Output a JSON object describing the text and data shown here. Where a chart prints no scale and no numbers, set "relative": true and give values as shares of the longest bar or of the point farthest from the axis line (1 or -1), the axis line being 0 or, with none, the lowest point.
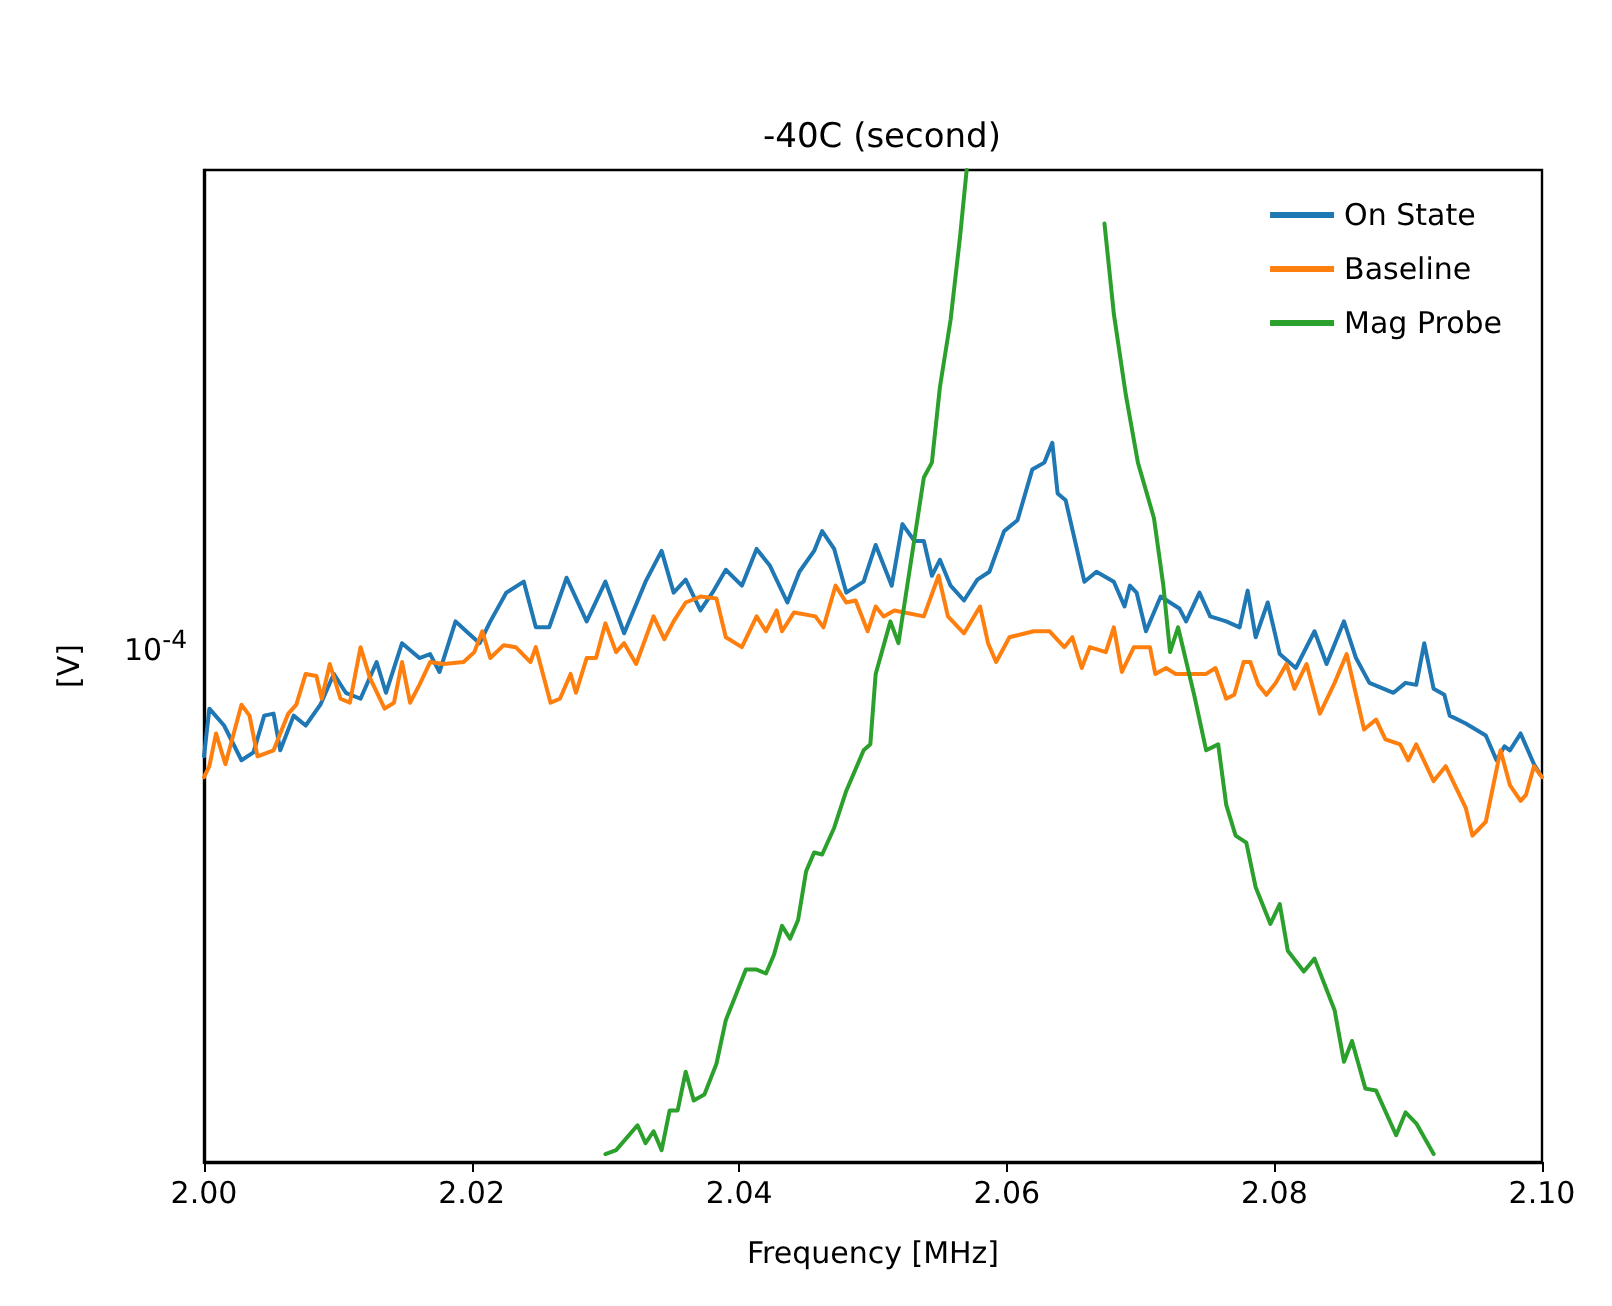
{
  "chart_data": {
    "type": "line",
    "title": "-40C (second)",
    "xlabel": "Frequency [MHz]",
    "ylabel": "[V]",
    "relative": true,
    "annotations": [
      "10$^{-4}$"
    ],
    "grid": false,
    "legend": "top right",
    "marker": "none",
    "line_style": "solid",
    "xlim": [
      2.0,
      2.1
    ],
    "xticks": [
      {
        "value": 2.0,
        "label": "2.00"
      },
      {
        "value": 2.02,
        "label": "2.02"
      },
      {
        "value": 2.04,
        "label": "2.04"
      },
      {
        "value": 2.06,
        "label": "2.06"
      },
      {
        "value": 2.08,
        "label": "2.08"
      },
      {
        "value": 2.1,
        "label": "2.10"
      }
    ],
    "series": [
      {
        "name": "On State",
        "color": "#1f77b4",
        "x": [
          2.0,
          2.0004,
          2.0015,
          2.0028,
          2.0037,
          2.0045,
          2.0052,
          2.0057,
          2.0067,
          2.0076,
          2.0087,
          2.0097,
          2.0106,
          2.0117,
          2.0129,
          2.0136,
          2.0148,
          2.0161,
          2.0169,
          2.0176,
          2.0188,
          2.0196,
          2.0206,
          2.0214,
          2.0226,
          2.0239,
          2.0248,
          2.0258,
          2.0271,
          2.0286,
          2.03,
          2.0314,
          2.033,
          2.0342,
          2.0351,
          2.036,
          2.0371,
          2.0381,
          2.039,
          2.0402,
          2.0413,
          2.0423,
          2.0436,
          2.0445,
          2.0456,
          2.0462,
          2.0471,
          2.048,
          2.0493,
          2.0502,
          2.0514,
          2.0522,
          2.0531,
          2.0538,
          2.0544,
          2.055,
          2.0558,
          2.0568,
          2.0578,
          2.0587,
          2.0598,
          2.0608,
          2.0619,
          2.0628,
          2.0634,
          2.0638,
          2.0644,
          2.0658,
          2.0667,
          2.068,
          2.0688,
          2.0692,
          2.0697,
          2.0704,
          2.0715,
          2.0729,
          2.0734,
          2.0744,
          2.0752,
          2.0764,
          2.0774,
          2.078,
          2.0786,
          2.0795,
          2.0804,
          2.0816,
          2.083,
          2.0839,
          2.0852,
          2.0861,
          2.0871,
          2.0889,
          2.0898,
          2.0906,
          2.0912,
          2.0919,
          2.0927,
          2.0931,
          2.0943,
          2.0958,
          2.0966,
          2.0972,
          2.0976,
          2.0984,
          2.0994,
          2.0999
        ],
        "values": [
          0.409,
          0.457,
          0.44,
          0.405,
          0.413,
          0.45,
          0.452,
          0.415,
          0.45,
          0.44,
          0.461,
          0.492,
          0.473,
          0.467,
          0.504,
          0.473,
          0.523,
          0.508,
          0.512,
          0.494,
          0.545,
          0.535,
          0.523,
          0.545,
          0.574,
          0.585,
          0.539,
          0.539,
          0.589,
          0.545,
          0.585,
          0.533,
          0.585,
          0.616,
          0.574,
          0.587,
          0.556,
          0.576,
          0.597,
          0.581,
          0.618,
          0.601,
          0.564,
          0.595,
          0.616,
          0.636,
          0.618,
          0.574,
          0.585,
          0.622,
          0.581,
          0.643,
          0.626,
          0.626,
          0.591,
          0.607,
          0.581,
          0.566,
          0.587,
          0.595,
          0.636,
          0.647,
          0.698,
          0.705,
          0.725,
          0.674,
          0.667,
          0.585,
          0.595,
          0.585,
          0.56,
          0.581,
          0.574,
          0.535,
          0.57,
          0.558,
          0.545,
          0.574,
          0.55,
          0.545,
          0.539,
          0.576,
          0.529,
          0.564,
          0.512,
          0.498,
          0.535,
          0.502,
          0.545,
          0.508,
          0.483,
          0.473,
          0.483,
          0.481,
          0.523,
          0.477,
          0.471,
          0.45,
          0.442,
          0.43,
          0.405,
          0.419,
          0.415,
          0.432,
          0.401,
          0.39
        ]
      },
      {
        "name": "Baseline",
        "color": "#ff7f0e",
        "x": [
          2.0,
          2.0004,
          2.0009,
          2.0016,
          2.0028,
          2.0034,
          2.004,
          2.0052,
          2.0063,
          2.0069,
          2.0076,
          2.0084,
          2.0088,
          2.0094,
          2.0102,
          2.0109,
          2.0117,
          2.0124,
          2.0135,
          2.0142,
          2.0148,
          2.0154,
          2.0161,
          2.0169,
          2.0179,
          2.0194,
          2.0202,
          2.0208,
          2.0214,
          2.0224,
          2.0233,
          2.0244,
          2.0248,
          2.0259,
          2.0266,
          2.0274,
          2.0278,
          2.0286,
          2.0293,
          2.03,
          2.0308,
          2.0314,
          2.0323,
          2.0336,
          2.0344,
          2.0351,
          2.036,
          2.0371,
          2.0383,
          2.039,
          2.0402,
          2.0413,
          2.042,
          2.0428,
          2.0432,
          2.0441,
          2.0457,
          2.0463,
          2.0472,
          2.048,
          2.0487,
          2.0496,
          2.0502,
          2.0508,
          2.0516,
          2.0538,
          2.0549,
          2.0556,
          2.0568,
          2.058,
          2.0586,
          2.0592,
          2.0602,
          2.062,
          2.0632,
          2.0643,
          2.0649,
          2.0656,
          2.0662,
          2.0674,
          2.068,
          2.0686,
          2.0695,
          2.0707,
          2.0711,
          2.0719,
          2.0726,
          2.0734,
          2.0749,
          2.0756,
          2.0764,
          2.077,
          2.0777,
          2.0782,
          2.0788,
          2.0794,
          2.0801,
          2.0809,
          2.0815,
          2.0824,
          2.0834,
          2.0845,
          2.0854,
          2.0867,
          2.0876,
          2.0883,
          2.0894,
          2.09,
          2.0906,
          2.0919,
          2.0928,
          2.0943,
          2.0948,
          2.0958,
          2.0969,
          2.0976,
          2.0984,
          2.0988,
          2.0994,
          2.1
        ],
        "values": [
          0.388,
          0.399,
          0.432,
          0.401,
          0.461,
          0.45,
          0.409,
          0.415,
          0.452,
          0.461,
          0.492,
          0.49,
          0.467,
          0.502,
          0.467,
          0.463,
          0.519,
          0.488,
          0.457,
          0.463,
          0.504,
          0.463,
          0.481,
          0.504,
          0.502,
          0.504,
          0.514,
          0.535,
          0.508,
          0.521,
          0.519,
          0.504,
          0.519,
          0.463,
          0.467,
          0.492,
          0.473,
          0.508,
          0.508,
          0.543,
          0.514,
          0.523,
          0.502,
          0.55,
          0.527,
          0.545,
          0.564,
          0.57,
          0.568,
          0.529,
          0.519,
          0.55,
          0.535,
          0.556,
          0.535,
          0.554,
          0.55,
          0.539,
          0.581,
          0.564,
          0.566,
          0.535,
          0.56,
          0.55,
          0.556,
          0.55,
          0.591,
          0.55,
          0.533,
          0.56,
          0.523,
          0.504,
          0.529,
          0.535,
          0.535,
          0.519,
          0.529,
          0.498,
          0.519,
          0.514,
          0.539,
          0.494,
          0.519,
          0.519,
          0.492,
          0.498,
          0.492,
          0.492,
          0.492,
          0.498,
          0.467,
          0.471,
          0.504,
          0.504,
          0.481,
          0.471,
          0.483,
          0.502,
          0.477,
          0.502,
          0.452,
          0.483,
          0.512,
          0.436,
          0.446,
          0.426,
          0.421,
          0.405,
          0.421,
          0.384,
          0.399,
          0.357,
          0.329,
          0.343,
          0.415,
          0.38,
          0.364,
          0.37,
          0.399,
          0.388
        ]
      },
      {
        "name": "Mag Probe",
        "color": "#2ca02c",
        "x": [
          2.03,
          2.0308,
          2.0324,
          2.033,
          2.0336,
          2.0342,
          2.0348,
          2.0354,
          2.036,
          2.0366,
          2.0374,
          2.0383,
          2.039,
          2.0405,
          2.0413,
          2.042,
          2.0426,
          2.0432,
          2.0438,
          2.0444,
          2.045,
          2.0456,
          2.0462,
          2.0471,
          2.048,
          2.0493,
          2.0498,
          2.0502,
          2.0513,
          2.0519,
          2.0538,
          2.0544,
          2.055,
          2.0558,
          2.0565,
          2.057,
          2.0665,
          2.0673,
          2.068,
          2.0689,
          2.0698,
          2.071,
          2.0717,
          2.0722,
          2.0728,
          2.074,
          2.0749,
          2.0758,
          2.0764,
          2.0771,
          2.0779,
          2.0786,
          2.0797,
          2.0804,
          2.081,
          2.0822,
          2.083,
          2.0845,
          2.0852,
          2.0858,
          2.0868,
          2.0876,
          2.0891,
          2.0898,
          2.0906,
          2.0919
        ],
        "values": [
          0.008,
          0.012,
          0.037,
          0.019,
          0.031,
          0.012,
          0.052,
          0.052,
          0.091,
          0.062,
          0.068,
          0.099,
          0.143,
          0.194,
          0.194,
          0.19,
          0.209,
          0.238,
          0.225,
          0.244,
          0.293,
          0.312,
          0.31,
          0.337,
          0.374,
          0.415,
          0.421,
          0.492,
          0.545,
          0.523,
          0.69,
          0.705,
          0.781,
          0.849,
          0.932,
          1,
          null,
          0.946,
          0.855,
          0.773,
          0.705,
          0.649,
          0.581,
          0.514,
          0.539,
          0.471,
          0.415,
          0.421,
          0.36,
          0.329,
          0.322,
          0.277,
          0.24,
          0.26,
          0.213,
          0.192,
          0.205,
          0.153,
          0.101,
          0.122,
          0.074,
          0.072,
          0.027,
          0.05,
          0.039,
          0.008
        ]
      }
    ]
  }
}
